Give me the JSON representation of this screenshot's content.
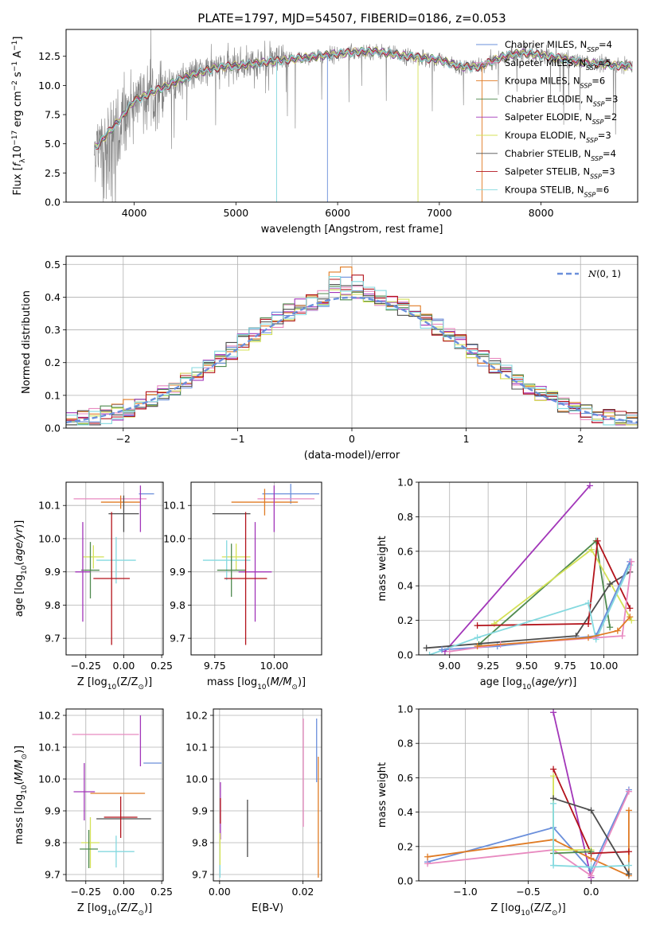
{
  "palette": {
    "blue": "#6a8fdb",
    "orange": "#e07b24",
    "green": "#4f8a4f",
    "purple": "#a236b9",
    "yellowgreen": "#d4e157",
    "dark": "#4d4d4d",
    "red": "#b3131b",
    "cyan": "#84d9df",
    "pink": "#e88ac0",
    "gray": "#808080"
  },
  "chart_data": [
    {
      "type": "line",
      "title": "PLATE=1797, MJD=54507, FIBERID=0186, z=0.053",
      "xlabel": "wavelength [Angstrom, rest frame]",
      "ylabel": "Flux [f_λ 10^-17 erg cm^-2 s^-1 A^-1]",
      "xlim": [
        3330,
        8950
      ],
      "ylim": [
        0,
        14.8
      ],
      "xticks": [
        4000,
        5000,
        6000,
        7000,
        8000
      ],
      "yticks": [
        0.0,
        2.5,
        5.0,
        7.5,
        10.0,
        12.5
      ],
      "grid": false,
      "legend_placement": "top-right",
      "observed_spectrum_color": "#808080",
      "continuum": {
        "x": [
          3600,
          3700,
          3800,
          3900,
          4000,
          4200,
          4400,
          4600,
          4800,
          5000,
          5200,
          5400,
          5600,
          5800,
          6000,
          6200,
          6400,
          6600,
          6800,
          7000,
          7200,
          7400,
          7600,
          7800,
          8000,
          8200,
          8400,
          8600,
          8900
        ],
        "y": [
          4.5,
          5.5,
          6.5,
          7.5,
          8.7,
          9.5,
          10.3,
          11.0,
          11.5,
          11.7,
          11.9,
          12.1,
          12.3,
          12.5,
          12.7,
          12.9,
          12.9,
          12.6,
          12.4,
          12.2,
          11.6,
          11.6,
          12.4,
          12.8,
          12.6,
          12.3,
          12.0,
          11.8,
          11.6
        ]
      },
      "series": [
        {
          "name": "Chabrier MILES, N_SSP=4",
          "color": "#6a8fdb"
        },
        {
          "name": "Salpeter MILES, N_SSP=5",
          "color": "#e88ac0"
        },
        {
          "name": "Kroupa MILES, N_SSP=6",
          "color": "#e07b24"
        },
        {
          "name": "Chabrier ELODIE, N_SSP=3",
          "color": "#4f8a4f"
        },
        {
          "name": "Salpeter ELODIE, N_SSP=2",
          "color": "#a236b9"
        },
        {
          "name": "Kroupa ELODIE, N_SSP=3",
          "color": "#d4e157"
        },
        {
          "name": "Chabrier STELIB, N_SSP=4",
          "color": "#4d4d4d"
        },
        {
          "name": "Salpeter STELIB, N_SSP=3",
          "color": "#b3131b"
        },
        {
          "name": "Kroupa STELIB, N_SSP=6",
          "color": "#84d9df"
        }
      ]
    },
    {
      "type": "histogram",
      "xlabel": "(data-model)/error",
      "ylabel": "Normed distribution",
      "xlim": [
        -2.5,
        2.5
      ],
      "ylim": [
        0,
        0.525
      ],
      "xticks": [
        -2,
        -1,
        0,
        1,
        2
      ],
      "xticklabels": [
        "−2",
        "−1",
        "0",
        "1",
        "2"
      ],
      "yticks": [
        0.0,
        0.1,
        0.2,
        0.3,
        0.4,
        0.5
      ],
      "grid": true,
      "legend_placement": "top-right",
      "legend": "N(0, 1)",
      "reference_curve": "standard normal, dashed",
      "reference_color": "#6a8fdb",
      "bin_width": 0.1,
      "series_colors": [
        "#6a8fdb",
        "#e88ac0",
        "#e07b24",
        "#4f8a4f",
        "#a236b9",
        "#d4e157",
        "#4d4d4d",
        "#b3131b",
        "#84d9df"
      ]
    },
    {
      "type": "scatter",
      "subtype": "errorbar",
      "xlabel": "Z [log10(Z/Z⊙)]",
      "ylabel": "age [log10(age/yr)]",
      "xlim": [
        -0.38,
        0.26
      ],
      "ylim": [
        9.65,
        10.17
      ],
      "xticks": [
        -0.25,
        0.0,
        0.25
      ],
      "xticklabels": [
        "−0.25",
        "0.00",
        "0.25"
      ],
      "yticks": [
        9.7,
        9.8,
        9.9,
        10.0,
        10.1
      ],
      "grid": true,
      "points": [
        {
          "color": "#6a8fdb",
          "x": 0.15,
          "xerr": 0.05,
          "y": 10.135,
          "yerr": 0.0
        },
        {
          "color": "#e88ac0",
          "x": -0.09,
          "xerr": 0.24,
          "y": 10.12,
          "yerr": 0.0
        },
        {
          "color": "#e07b24",
          "x": -0.02,
          "xerr": 0.13,
          "y": 10.11,
          "yerr": 0.02
        },
        {
          "color": "#a236b9",
          "x": 0.11,
          "xerr": 0.0,
          "y": 10.09,
          "yerr": 0.07
        },
        {
          "color": "#4d4d4d",
          "x": 0.0,
          "xerr": 0.1,
          "y": 10.075,
          "yerr": 0.055
        },
        {
          "color": "#d4e157",
          "x": -0.2,
          "xerr": 0.07,
          "y": 9.945,
          "yerr": 0.035
        },
        {
          "color": "#84d9df",
          "x": -0.05,
          "xerr": 0.13,
          "y": 9.935,
          "yerr": 0.07
        },
        {
          "color": "#4f8a4f",
          "x": -0.22,
          "xerr": 0.06,
          "y": 9.905,
          "yerr": 0.085
        },
        {
          "color": "#a236b9",
          "x": -0.27,
          "xerr": 0.05,
          "y": 9.9,
          "yerr": 0.15
        },
        {
          "color": "#b3131b",
          "x": -0.08,
          "xerr": 0.12,
          "y": 9.88,
          "yerr": 0.2
        }
      ]
    },
    {
      "type": "scatter",
      "subtype": "errorbar",
      "xlabel": "mass [log10(M/M⊙)]",
      "ylabel": "",
      "xlim": [
        9.65,
        10.2
      ],
      "ylim": [
        9.65,
        10.17
      ],
      "xticks": [
        9.75,
        10.0
      ],
      "xticklabels": [
        "9.75",
        "10.00"
      ],
      "yticks": [
        9.7,
        9.8,
        9.9,
        10.0,
        10.1
      ],
      "grid": true,
      "points": [
        {
          "color": "#6a8fdb",
          "x": 10.07,
          "xerr": 0.12,
          "y": 10.135,
          "yerr": 0.03
        },
        {
          "color": "#e88ac0",
          "x": 10.05,
          "xerr": 0.12,
          "y": 10.12,
          "yerr": 0.0
        },
        {
          "color": "#e07b24",
          "x": 9.96,
          "xerr": 0.14,
          "y": 10.11,
          "yerr": 0.04
        },
        {
          "color": "#a236b9",
          "x": 10.0,
          "xerr": 0.0,
          "y": 10.09,
          "yerr": 0.07
        },
        {
          "color": "#4d4d4d",
          "x": 9.82,
          "xerr": 0.08,
          "y": 10.075,
          "yerr": 0.0
        },
        {
          "color": "#d4e157",
          "x": 9.84,
          "xerr": 0.06,
          "y": 9.945,
          "yerr": 0.04
        },
        {
          "color": "#84d9df",
          "x": 9.8,
          "xerr": 0.1,
          "y": 9.935,
          "yerr": 0.06
        },
        {
          "color": "#4f8a4f",
          "x": 9.82,
          "xerr": 0.06,
          "y": 9.905,
          "yerr": 0.08
        },
        {
          "color": "#a236b9",
          "x": 9.92,
          "xerr": 0.07,
          "y": 9.9,
          "yerr": 0.15
        },
        {
          "color": "#b3131b",
          "x": 9.88,
          "xerr": 0.09,
          "y": 9.88,
          "yerr": 0.2
        }
      ]
    },
    {
      "type": "line",
      "xlabel": "age [log10(age/yr)]",
      "ylabel": "mass weight",
      "xlim": [
        8.8,
        10.22
      ],
      "ylim": [
        0,
        1.0
      ],
      "xticks": [
        9.0,
        9.25,
        9.5,
        9.75,
        10.0
      ],
      "xticklabels": [
        "9.00",
        "9.25",
        "9.50",
        "9.75",
        "10.00"
      ],
      "yticks": [
        0.0,
        0.2,
        0.4,
        0.6,
        0.8,
        1.0
      ],
      "grid": true,
      "series": [
        {
          "color": "#a236b9",
          "x": [
            8.97,
            9.91
          ],
          "y": [
            0.02,
            0.98
          ]
        },
        {
          "color": "#4f8a4f",
          "x": [
            9.19,
            9.95,
            10.04
          ],
          "y": [
            0.06,
            0.66,
            0.16
          ]
        },
        {
          "color": "#d4e157",
          "x": [
            9.29,
            9.92,
            10.18
          ],
          "y": [
            0.18,
            0.61,
            0.2
          ]
        },
        {
          "color": "#4d4d4d",
          "x": [
            8.85,
            9.82,
            10.04,
            10.17
          ],
          "y": [
            0.04,
            0.11,
            0.41,
            0.48
          ]
        },
        {
          "color": "#b3131b",
          "x": [
            9.18,
            9.9,
            9.96,
            10.17
          ],
          "y": [
            0.17,
            0.18,
            0.66,
            0.27
          ]
        },
        {
          "color": "#84d9df",
          "x": [
            8.87,
            9.18,
            9.9,
            9.95,
            10.17
          ],
          "y": [
            0.0,
            0.1,
            0.3,
            0.09,
            0.52
          ]
        },
        {
          "color": "#6a8fdb",
          "x": [
            8.95,
            9.31,
            9.95,
            10.17
          ],
          "y": [
            0.03,
            0.05,
            0.11,
            0.54
          ]
        },
        {
          "color": "#e88ac0",
          "x": [
            9.0,
            9.33,
            10.12,
            10.18
          ],
          "y": [
            0.02,
            0.06,
            0.11,
            0.54
          ]
        },
        {
          "color": "#e07b24",
          "x": [
            9.18,
            9.9,
            10.09,
            10.17
          ],
          "y": [
            0.05,
            0.1,
            0.14,
            0.22
          ]
        }
      ]
    },
    {
      "type": "scatter",
      "subtype": "errorbar",
      "xlabel": "Z [log10(Z/Z⊙)]",
      "ylabel": "mass [log10(M/M⊙)]",
      "xlim": [
        -0.38,
        0.26
      ],
      "ylim": [
        9.68,
        10.22
      ],
      "xticks": [
        -0.25,
        0.0,
        0.25
      ],
      "xticklabels": [
        "−0.25",
        "0.00",
        "0.25"
      ],
      "yticks": [
        9.7,
        9.8,
        9.9,
        10.0,
        10.1,
        10.2
      ],
      "grid": true,
      "points": [
        {
          "color": "#e88ac0",
          "x": -0.12,
          "xerr": 0.22,
          "y": 10.14,
          "yerr": 0.0
        },
        {
          "color": "#a236b9",
          "x": 0.11,
          "xerr": 0.0,
          "y": 10.12,
          "yerr": 0.08
        },
        {
          "color": "#6a8fdb",
          "x": 0.19,
          "xerr": 0.06,
          "y": 10.05,
          "yerr": 0.0
        },
        {
          "color": "#a236b9",
          "x": -0.26,
          "xerr": 0.07,
          "y": 9.96,
          "yerr": 0.09
        },
        {
          "color": "#e07b24",
          "x": -0.04,
          "xerr": 0.18,
          "y": 9.955,
          "yerr": 0.0
        },
        {
          "color": "#4d4d4d",
          "x": 0.0,
          "xerr": 0.18,
          "y": 9.875,
          "yerr": 0.0
        },
        {
          "color": "#b3131b",
          "x": -0.02,
          "xerr": 0.11,
          "y": 9.88,
          "yerr": 0.065
        },
        {
          "color": "#d4e157",
          "x": -0.22,
          "xerr": 0.06,
          "y": 9.8,
          "yerr": 0.08
        },
        {
          "color": "#4f8a4f",
          "x": -0.23,
          "xerr": 0.06,
          "y": 9.78,
          "yerr": 0.06
        },
        {
          "color": "#84d9df",
          "x": -0.05,
          "xerr": 0.12,
          "y": 9.772,
          "yerr": 0.05
        }
      ]
    },
    {
      "type": "scatter",
      "subtype": "errorbar",
      "xlabel": "E(B-V)",
      "ylabel": "",
      "xlim": [
        -0.0015,
        0.0245
      ],
      "ylim": [
        9.68,
        10.22
      ],
      "xticks": [
        0.0,
        0.02
      ],
      "xticklabels": [
        "0.00",
        "0.02"
      ],
      "yticks": [
        9.7,
        9.8,
        9.9,
        10.0,
        10.1,
        10.2
      ],
      "grid": true,
      "points": [
        {
          "color": "#e88ac0",
          "x": 0.0201,
          "xerr": 0.0,
          "y": 10.02,
          "yerr": 0.17
        },
        {
          "color": "#6a8fdb",
          "x": 0.0233,
          "xerr": 0.0,
          "y": 10.09,
          "yerr": 0.1
        },
        {
          "color": "#e07b24",
          "x": 0.0237,
          "xerr": 0.0,
          "y": 9.88,
          "yerr": 0.19
        },
        {
          "color": "#4d4d4d",
          "x": 0.0067,
          "xerr": 0.0,
          "y": 9.845,
          "yerr": 0.09
        },
        {
          "color": "#a236b9",
          "x": 0.0002,
          "xerr": 0.0,
          "y": 9.9,
          "yerr": 0.09
        },
        {
          "color": "#b3131b",
          "x": 0.0002,
          "xerr": 0.0,
          "y": 9.9,
          "yerr": 0.04
        },
        {
          "color": "#84d9df",
          "x": 0.0001,
          "xerr": 0.0,
          "y": 9.74,
          "yerr": 0.05
        },
        {
          "color": "#d4e157",
          "x": 0.0001,
          "xerr": 0.0,
          "y": 9.78,
          "yerr": 0.05
        }
      ]
    },
    {
      "type": "line",
      "xlabel": "Z [log10(Z/Z⊙)]",
      "ylabel": "mass weight",
      "xlim": [
        -1.37,
        0.37
      ],
      "ylim": [
        0,
        1.0
      ],
      "xticks": [
        -1.0,
        -0.5,
        0.0
      ],
      "xticklabels": [
        "−1.0",
        "−0.5",
        "0.0"
      ],
      "yticks": [
        0.0,
        0.2,
        0.4,
        0.6,
        0.8,
        1.0
      ],
      "grid": true,
      "series": [
        {
          "color": "#a236b9",
          "x": [
            -0.3,
            0.0
          ],
          "y": [
            0.98,
            0.02
          ]
        },
        {
          "color": "#6a8fdb",
          "x": [
            -1.3,
            -0.3,
            0.0,
            0.3
          ],
          "y": [
            0.11,
            0.31,
            0.06,
            0.53
          ]
        },
        {
          "color": "#e07b24",
          "x": [
            -1.3,
            -0.3,
            0.0,
            0.3,
            0.3
          ],
          "y": [
            0.14,
            0.24,
            0.13,
            0.03,
            0.41
          ]
        },
        {
          "color": "#e88ac0",
          "x": [
            -1.3,
            -0.3,
            0.0,
            0.3
          ],
          "y": [
            0.1,
            0.18,
            0.03,
            0.52
          ]
        },
        {
          "color": "#b3131b",
          "x": [
            -0.3,
            0.0,
            0.3
          ],
          "y": [
            0.65,
            0.16,
            0.17
          ]
        },
        {
          "color": "#d4e157",
          "x": [
            -0.3,
            -0.3,
            0.0
          ],
          "y": [
            0.61,
            0.18,
            0.18
          ]
        },
        {
          "color": "#4d4d4d",
          "x": [
            -0.3,
            0.0,
            0.3
          ],
          "y": [
            0.48,
            0.41,
            0.04
          ]
        },
        {
          "color": "#4f8a4f",
          "x": [
            -0.3,
            0.0
          ],
          "y": [
            0.16,
            0.17
          ]
        },
        {
          "color": "#84d9df",
          "x": [
            -0.3,
            -0.3,
            0.0,
            0.3
          ],
          "y": [
            0.45,
            0.09,
            0.08,
            0.09
          ]
        }
      ]
    }
  ]
}
